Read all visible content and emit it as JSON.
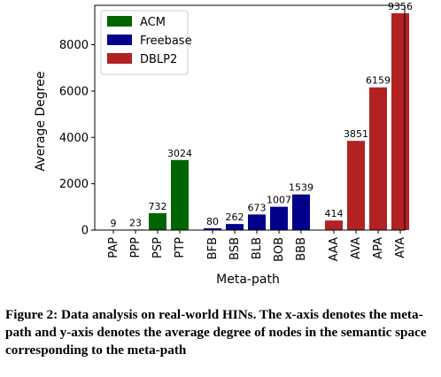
{
  "chart_data": {
    "type": "bar",
    "xlabel": "Meta-path",
    "ylabel": "Average Degree",
    "ylim": [
      0,
      9700
    ],
    "yticks": [
      0,
      2000,
      4000,
      6000,
      8000
    ],
    "grid": false,
    "legend_position": "top-left",
    "groups": [
      {
        "name": "ACM",
        "color": "#006400",
        "categories": [
          "PAP",
          "PPP",
          "PSP",
          "PTP"
        ],
        "values": [
          9,
          23,
          732,
          3024
        ]
      },
      {
        "name": "Freebase",
        "color": "#00008b",
        "categories": [
          "BFB",
          "BSB",
          "BLB",
          "BOB",
          "BBB"
        ],
        "values": [
          80,
          262,
          673,
          1007,
          1539
        ]
      },
      {
        "name": "DBLP2",
        "color": "#b22222",
        "categories": [
          "AAA",
          "AVA",
          "APA",
          "AYA"
        ],
        "values": [
          414,
          3851,
          6159,
          9356
        ]
      }
    ]
  },
  "caption": "Figure 2: Data analysis on real-world HINs. The x-axis denotes the meta-path and y-axis denotes the average degree of nodes in the semantic space corresponding to the meta-path"
}
